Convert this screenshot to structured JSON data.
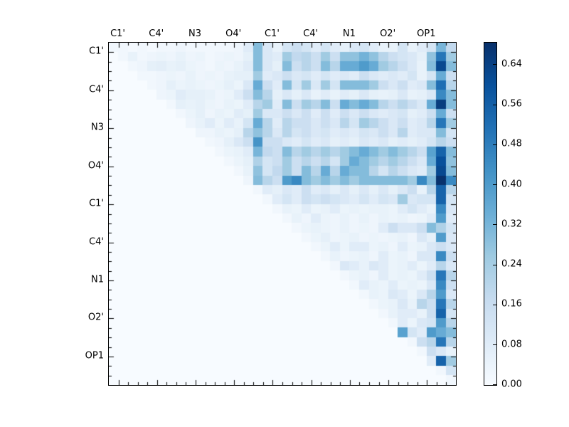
{
  "figure": {
    "background": "#ffffff",
    "title": ""
  },
  "axes": {
    "top_labels": [
      "C1'",
      "C4'",
      "N3",
      "O4'",
      "C1'",
      "C4'",
      "N1",
      "O2'",
      "OP1"
    ],
    "left_labels": [
      "C1'",
      "C4'",
      "N3",
      "O4'",
      "C1'",
      "C4'",
      "N1",
      "O2'",
      "OP1"
    ],
    "tick_color": "#000000",
    "border_color": "#000000"
  },
  "colorbar": {
    "tick_labels": [
      "0.00",
      "0.08",
      "0.16",
      "0.24",
      "0.32",
      "0.40",
      "0.48",
      "0.56",
      "0.64"
    ],
    "tick_values": [
      0.0,
      0.08,
      0.16,
      0.24,
      0.32,
      0.4,
      0.48,
      0.56,
      0.64
    ],
    "vmin": 0.0,
    "vmax": 0.684,
    "orientation": "vertical",
    "position": "right"
  },
  "chart_data": {
    "type": "heatmap",
    "colormap": "Blues",
    "colormap_anchors": [
      "#f7fbff",
      "#deebf7",
      "#c6dbef",
      "#9ecae1",
      "#6baed6",
      "#4292c6",
      "#2171b5",
      "#08519c",
      "#08306b"
    ],
    "vmin": 0.0,
    "vmax": 0.684,
    "n_rows": 36,
    "n_cols": 36,
    "cells_per_label_group": 4,
    "group_labels": [
      "C1'",
      "C4'",
      "N3",
      "O4'",
      "C1'",
      "C4'",
      "N1",
      "O2'",
      "OP1"
    ],
    "structure": "upper-triangular",
    "grid": false,
    "matrix": [
      [
        0.02,
        0.02,
        0.01,
        0.02,
        0.01,
        0.02,
        0.02,
        0.03,
        0.02,
        0.02,
        0.02,
        0.02,
        0.02,
        0.03,
        0.08,
        0.3,
        0.1,
        0.05,
        0.12,
        0.15,
        0.12,
        0.08,
        0.12,
        0.08,
        0.06,
        0.1,
        0.12,
        0.08,
        0.05,
        0.05,
        0.12,
        0.05,
        0.08,
        0.12,
        0.32,
        0.18
      ],
      [
        0,
        0.02,
        0.05,
        0.02,
        0.03,
        0.04,
        0.03,
        0.05,
        0.03,
        0.04,
        0.02,
        0.03,
        0.04,
        0.03,
        0.06,
        0.3,
        0.1,
        0.08,
        0.25,
        0.18,
        0.2,
        0.15,
        0.25,
        0.15,
        0.28,
        0.28,
        0.33,
        0.28,
        0.2,
        0.15,
        0.12,
        0.1,
        0.06,
        0.28,
        0.5,
        0.25
      ],
      [
        0,
        0,
        0.02,
        0.03,
        0.06,
        0.07,
        0.05,
        0.06,
        0.04,
        0.03,
        0.02,
        0.04,
        0.03,
        0.05,
        0.08,
        0.3,
        0.1,
        0.06,
        0.3,
        0.15,
        0.2,
        0.15,
        0.3,
        0.2,
        0.35,
        0.35,
        0.4,
        0.35,
        0.25,
        0.2,
        0.15,
        0.1,
        0.05,
        0.3,
        0.62,
        0.3
      ],
      [
        0,
        0,
        0,
        0.02,
        0.02,
        0.03,
        0.04,
        0.03,
        0.05,
        0.03,
        0.04,
        0.03,
        0.05,
        0.06,
        0.06,
        0.25,
        0.08,
        0.1,
        0.15,
        0.1,
        0.12,
        0.08,
        0.12,
        0.08,
        0.1,
        0.08,
        0.15,
        0.1,
        0.08,
        0.1,
        0.08,
        0.12,
        0.05,
        0.12,
        0.35,
        0.15
      ],
      [
        0,
        0,
        0,
        0,
        0.02,
        0.03,
        0.06,
        0.04,
        0.05,
        0.04,
        0.03,
        0.04,
        0.06,
        0.04,
        0.1,
        0.35,
        0.15,
        0.08,
        0.3,
        0.12,
        0.25,
        0.1,
        0.25,
        0.12,
        0.3,
        0.3,
        0.3,
        0.25,
        0.15,
        0.1,
        0.15,
        0.08,
        0.1,
        0.3,
        0.52,
        0.2
      ],
      [
        0,
        0,
        0,
        0,
        0,
        0.03,
        0.04,
        0.08,
        0.06,
        0.06,
        0.05,
        0.03,
        0.04,
        0.08,
        0.15,
        0.3,
        0.2,
        0.06,
        0.1,
        0.06,
        0.1,
        0.05,
        0.08,
        0.05,
        0.08,
        0.06,
        0.1,
        0.06,
        0.05,
        0.06,
        0.1,
        0.05,
        0.06,
        0.1,
        0.45,
        0.3
      ],
      [
        0,
        0,
        0,
        0,
        0,
        0,
        0.02,
        0.06,
        0.05,
        0.06,
        0.04,
        0.03,
        0.05,
        0.04,
        0.08,
        0.2,
        0.25,
        0.08,
        0.3,
        0.15,
        0.25,
        0.2,
        0.3,
        0.15,
        0.35,
        0.3,
        0.35,
        0.3,
        0.2,
        0.15,
        0.2,
        0.15,
        0.1,
        0.35,
        0.65,
        0.3
      ],
      [
        0,
        0,
        0,
        0,
        0,
        0,
        0,
        0.02,
        0.04,
        0.06,
        0.03,
        0.05,
        0.04,
        0.08,
        0.06,
        0.25,
        0.1,
        0.1,
        0.15,
        0.1,
        0.15,
        0.08,
        0.15,
        0.08,
        0.15,
        0.1,
        0.15,
        0.1,
        0.08,
        0.1,
        0.12,
        0.06,
        0.08,
        0.15,
        0.35,
        0.15
      ],
      [
        0,
        0,
        0,
        0,
        0,
        0,
        0,
        0,
        0.03,
        0.05,
        0.08,
        0.04,
        0.08,
        0.05,
        0.12,
        0.35,
        0.2,
        0.08,
        0.2,
        0.15,
        0.15,
        0.1,
        0.15,
        0.1,
        0.2,
        0.12,
        0.25,
        0.2,
        0.15,
        0.1,
        0.15,
        0.08,
        0.1,
        0.2,
        0.5,
        0.25
      ],
      [
        0,
        0,
        0,
        0,
        0,
        0,
        0,
        0,
        0,
        0.03,
        0.03,
        0.05,
        0.04,
        0.06,
        0.2,
        0.28,
        0.2,
        0.1,
        0.2,
        0.12,
        0.15,
        0.1,
        0.12,
        0.08,
        0.1,
        0.08,
        0.12,
        0.1,
        0.15,
        0.1,
        0.2,
        0.08,
        0.1,
        0.1,
        0.3,
        0.12
      ],
      [
        0,
        0,
        0,
        0,
        0,
        0,
        0,
        0,
        0,
        0,
        0.02,
        0.03,
        0.06,
        0.1,
        0.15,
        0.42,
        0.15,
        0.15,
        0.1,
        0.08,
        0.12,
        0.08,
        0.1,
        0.06,
        0.08,
        0.06,
        0.1,
        0.08,
        0.1,
        0.06,
        0.08,
        0.06,
        0.08,
        0.12,
        0.2,
        0.15
      ],
      [
        0,
        0,
        0,
        0,
        0,
        0,
        0,
        0,
        0,
        0,
        0,
        0.02,
        0.04,
        0.05,
        0.08,
        0.32,
        0.18,
        0.15,
        0.3,
        0.2,
        0.25,
        0.2,
        0.25,
        0.2,
        0.25,
        0.3,
        0.35,
        0.3,
        0.25,
        0.3,
        0.25,
        0.2,
        0.15,
        0.38,
        0.55,
        0.3
      ],
      [
        0,
        0,
        0,
        0,
        0,
        0,
        0,
        0,
        0,
        0,
        0,
        0,
        0.02,
        0.04,
        0.06,
        0.22,
        0.12,
        0.15,
        0.25,
        0.15,
        0.2,
        0.15,
        0.2,
        0.12,
        0.25,
        0.35,
        0.3,
        0.25,
        0.2,
        0.25,
        0.2,
        0.15,
        0.1,
        0.35,
        0.6,
        0.28
      ],
      [
        0,
        0,
        0,
        0,
        0,
        0,
        0,
        0,
        0,
        0,
        0,
        0,
        0,
        0.02,
        0.05,
        0.28,
        0.12,
        0.18,
        0.25,
        0.15,
        0.3,
        0.2,
        0.35,
        0.2,
        0.35,
        0.3,
        0.3,
        0.2,
        0.12,
        0.2,
        0.15,
        0.1,
        0.08,
        0.25,
        0.62,
        0.3
      ],
      [
        0,
        0,
        0,
        0,
        0,
        0,
        0,
        0,
        0,
        0,
        0,
        0,
        0,
        0,
        0.03,
        0.3,
        0.2,
        0.15,
        0.4,
        0.45,
        0.3,
        0.25,
        0.3,
        0.25,
        0.3,
        0.25,
        0.3,
        0.3,
        0.3,
        0.3,
        0.3,
        0.25,
        0.45,
        0.3,
        0.68,
        0.45
      ],
      [
        0,
        0,
        0,
        0,
        0,
        0,
        0,
        0,
        0,
        0,
        0,
        0,
        0,
        0,
        0,
        0.02,
        0.08,
        0.06,
        0.1,
        0.08,
        0.15,
        0.08,
        0.1,
        0.06,
        0.1,
        0.06,
        0.1,
        0.06,
        0.1,
        0.06,
        0.1,
        0.15,
        0.05,
        0.2,
        0.55,
        0.2
      ],
      [
        0,
        0,
        0,
        0,
        0,
        0,
        0,
        0,
        0,
        0,
        0,
        0,
        0,
        0,
        0,
        0,
        0.02,
        0.08,
        0.12,
        0.08,
        0.15,
        0.12,
        0.15,
        0.12,
        0.1,
        0.08,
        0.12,
        0.08,
        0.12,
        0.1,
        0.25,
        0.1,
        0.12,
        0.12,
        0.55,
        0.12
      ],
      [
        0,
        0,
        0,
        0,
        0,
        0,
        0,
        0,
        0,
        0,
        0,
        0,
        0,
        0,
        0,
        0,
        0,
        0.02,
        0.05,
        0.04,
        0.08,
        0.04,
        0.05,
        0.08,
        0.04,
        0.05,
        0.04,
        0.05,
        0.05,
        0.04,
        0.08,
        0.12,
        0.08,
        0.05,
        0.45,
        0.1
      ],
      [
        0,
        0,
        0,
        0,
        0,
        0,
        0,
        0,
        0,
        0,
        0,
        0,
        0,
        0,
        0,
        0,
        0,
        0,
        0.02,
        0.05,
        0.03,
        0.08,
        0.04,
        0.03,
        0.05,
        0.03,
        0.05,
        0.03,
        0.05,
        0.04,
        0.05,
        0.03,
        0.04,
        0.08,
        0.4,
        0.08
      ],
      [
        0,
        0,
        0,
        0,
        0,
        0,
        0,
        0,
        0,
        0,
        0,
        0,
        0,
        0,
        0,
        0,
        0,
        0,
        0,
        0.02,
        0.04,
        0.05,
        0.04,
        0.03,
        0.05,
        0.03,
        0.04,
        0.03,
        0.08,
        0.15,
        0.1,
        0.1,
        0.15,
        0.3,
        0.22,
        0.12
      ],
      [
        0,
        0,
        0,
        0,
        0,
        0,
        0,
        0,
        0,
        0,
        0,
        0,
        0,
        0,
        0,
        0,
        0,
        0,
        0,
        0,
        0.02,
        0.04,
        0.06,
        0.03,
        0.04,
        0.05,
        0.03,
        0.04,
        0.03,
        0.04,
        0.05,
        0.03,
        0.1,
        0.06,
        0.4,
        0.1
      ],
      [
        0,
        0,
        0,
        0,
        0,
        0,
        0,
        0,
        0,
        0,
        0,
        0,
        0,
        0,
        0,
        0,
        0,
        0,
        0,
        0,
        0,
        0.02,
        0.04,
        0.08,
        0.04,
        0.08,
        0.08,
        0.04,
        0.05,
        0.03,
        0.08,
        0.04,
        0.05,
        0.1,
        0.15,
        0.1
      ],
      [
        0,
        0,
        0,
        0,
        0,
        0,
        0,
        0,
        0,
        0,
        0,
        0,
        0,
        0,
        0,
        0,
        0,
        0,
        0,
        0,
        0,
        0,
        0.02,
        0.05,
        0.03,
        0.04,
        0.05,
        0.03,
        0.08,
        0.04,
        0.05,
        0.03,
        0.1,
        0.1,
        0.45,
        0.15
      ],
      [
        0,
        0,
        0,
        0,
        0,
        0,
        0,
        0,
        0,
        0,
        0,
        0,
        0,
        0,
        0,
        0,
        0,
        0,
        0,
        0,
        0,
        0,
        0,
        0.02,
        0.1,
        0.08,
        0.05,
        0.1,
        0.08,
        0.04,
        0.05,
        0.08,
        0.04,
        0.08,
        0.2,
        0.1
      ],
      [
        0,
        0,
        0,
        0,
        0,
        0,
        0,
        0,
        0,
        0,
        0,
        0,
        0,
        0,
        0,
        0,
        0,
        0,
        0,
        0,
        0,
        0,
        0,
        0,
        0.02,
        0.04,
        0.05,
        0.03,
        0.08,
        0.04,
        0.05,
        0.04,
        0.08,
        0.15,
        0.5,
        0.2
      ],
      [
        0,
        0,
        0,
        0,
        0,
        0,
        0,
        0,
        0,
        0,
        0,
        0,
        0,
        0,
        0,
        0,
        0,
        0,
        0,
        0,
        0,
        0,
        0,
        0,
        0,
        0.02,
        0.08,
        0.05,
        0.04,
        0.08,
        0.04,
        0.05,
        0.04,
        0.1,
        0.45,
        0.15
      ],
      [
        0,
        0,
        0,
        0,
        0,
        0,
        0,
        0,
        0,
        0,
        0,
        0,
        0,
        0,
        0,
        0,
        0,
        0,
        0,
        0,
        0,
        0,
        0,
        0,
        0,
        0,
        0.02,
        0.05,
        0.04,
        0.1,
        0.08,
        0.04,
        0.1,
        0.2,
        0.4,
        0.1
      ],
      [
        0,
        0,
        0,
        0,
        0,
        0,
        0,
        0,
        0,
        0,
        0,
        0,
        0,
        0,
        0,
        0,
        0,
        0,
        0,
        0,
        0,
        0,
        0,
        0,
        0,
        0,
        0,
        0.02,
        0.04,
        0.05,
        0.1,
        0.05,
        0.2,
        0.15,
        0.5,
        0.2
      ],
      [
        0,
        0,
        0,
        0,
        0,
        0,
        0,
        0,
        0,
        0,
        0,
        0,
        0,
        0,
        0,
        0,
        0,
        0,
        0,
        0,
        0,
        0,
        0,
        0,
        0,
        0,
        0,
        0,
        0.02,
        0.05,
        0.08,
        0.08,
        0.05,
        0.15,
        0.55,
        0.12
      ],
      [
        0,
        0,
        0,
        0,
        0,
        0,
        0,
        0,
        0,
        0,
        0,
        0,
        0,
        0,
        0,
        0,
        0,
        0,
        0,
        0,
        0,
        0,
        0,
        0,
        0,
        0,
        0,
        0,
        0,
        0.02,
        0.08,
        0.04,
        0.1,
        0.12,
        0.4,
        0.2
      ],
      [
        0,
        0,
        0,
        0,
        0,
        0,
        0,
        0,
        0,
        0,
        0,
        0,
        0,
        0,
        0,
        0,
        0,
        0,
        0,
        0,
        0,
        0,
        0,
        0,
        0,
        0,
        0,
        0,
        0,
        0,
        0.38,
        0.12,
        0.08,
        0.4,
        0.35,
        0.3
      ],
      [
        0,
        0,
        0,
        0,
        0,
        0,
        0,
        0,
        0,
        0,
        0,
        0,
        0,
        0,
        0,
        0,
        0,
        0,
        0,
        0,
        0,
        0,
        0,
        0,
        0,
        0,
        0,
        0,
        0,
        0,
        0,
        0.02,
        0.15,
        0.2,
        0.5,
        0.2
      ],
      [
        0,
        0,
        0,
        0,
        0,
        0,
        0,
        0,
        0,
        0,
        0,
        0,
        0,
        0,
        0,
        0,
        0,
        0,
        0,
        0,
        0,
        0,
        0,
        0,
        0,
        0,
        0,
        0,
        0,
        0,
        0,
        0,
        0.02,
        0.15,
        0.1,
        0.05
      ],
      [
        0,
        0,
        0,
        0,
        0,
        0,
        0,
        0,
        0,
        0,
        0,
        0,
        0,
        0,
        0,
        0,
        0,
        0,
        0,
        0,
        0,
        0,
        0,
        0,
        0,
        0,
        0,
        0,
        0,
        0,
        0,
        0,
        0,
        0.08,
        0.55,
        0.25
      ],
      [
        0,
        0,
        0,
        0,
        0,
        0,
        0,
        0,
        0,
        0,
        0,
        0,
        0,
        0,
        0,
        0,
        0,
        0,
        0,
        0,
        0,
        0,
        0,
        0,
        0,
        0,
        0,
        0,
        0,
        0,
        0,
        0,
        0,
        0,
        0.02,
        0.12
      ],
      [
        0,
        0,
        0,
        0,
        0,
        0,
        0,
        0,
        0,
        0,
        0,
        0,
        0,
        0,
        0,
        0,
        0,
        0,
        0,
        0,
        0,
        0,
        0,
        0,
        0,
        0,
        0,
        0,
        0,
        0,
        0,
        0,
        0,
        0,
        0,
        0.02
      ]
    ]
  }
}
